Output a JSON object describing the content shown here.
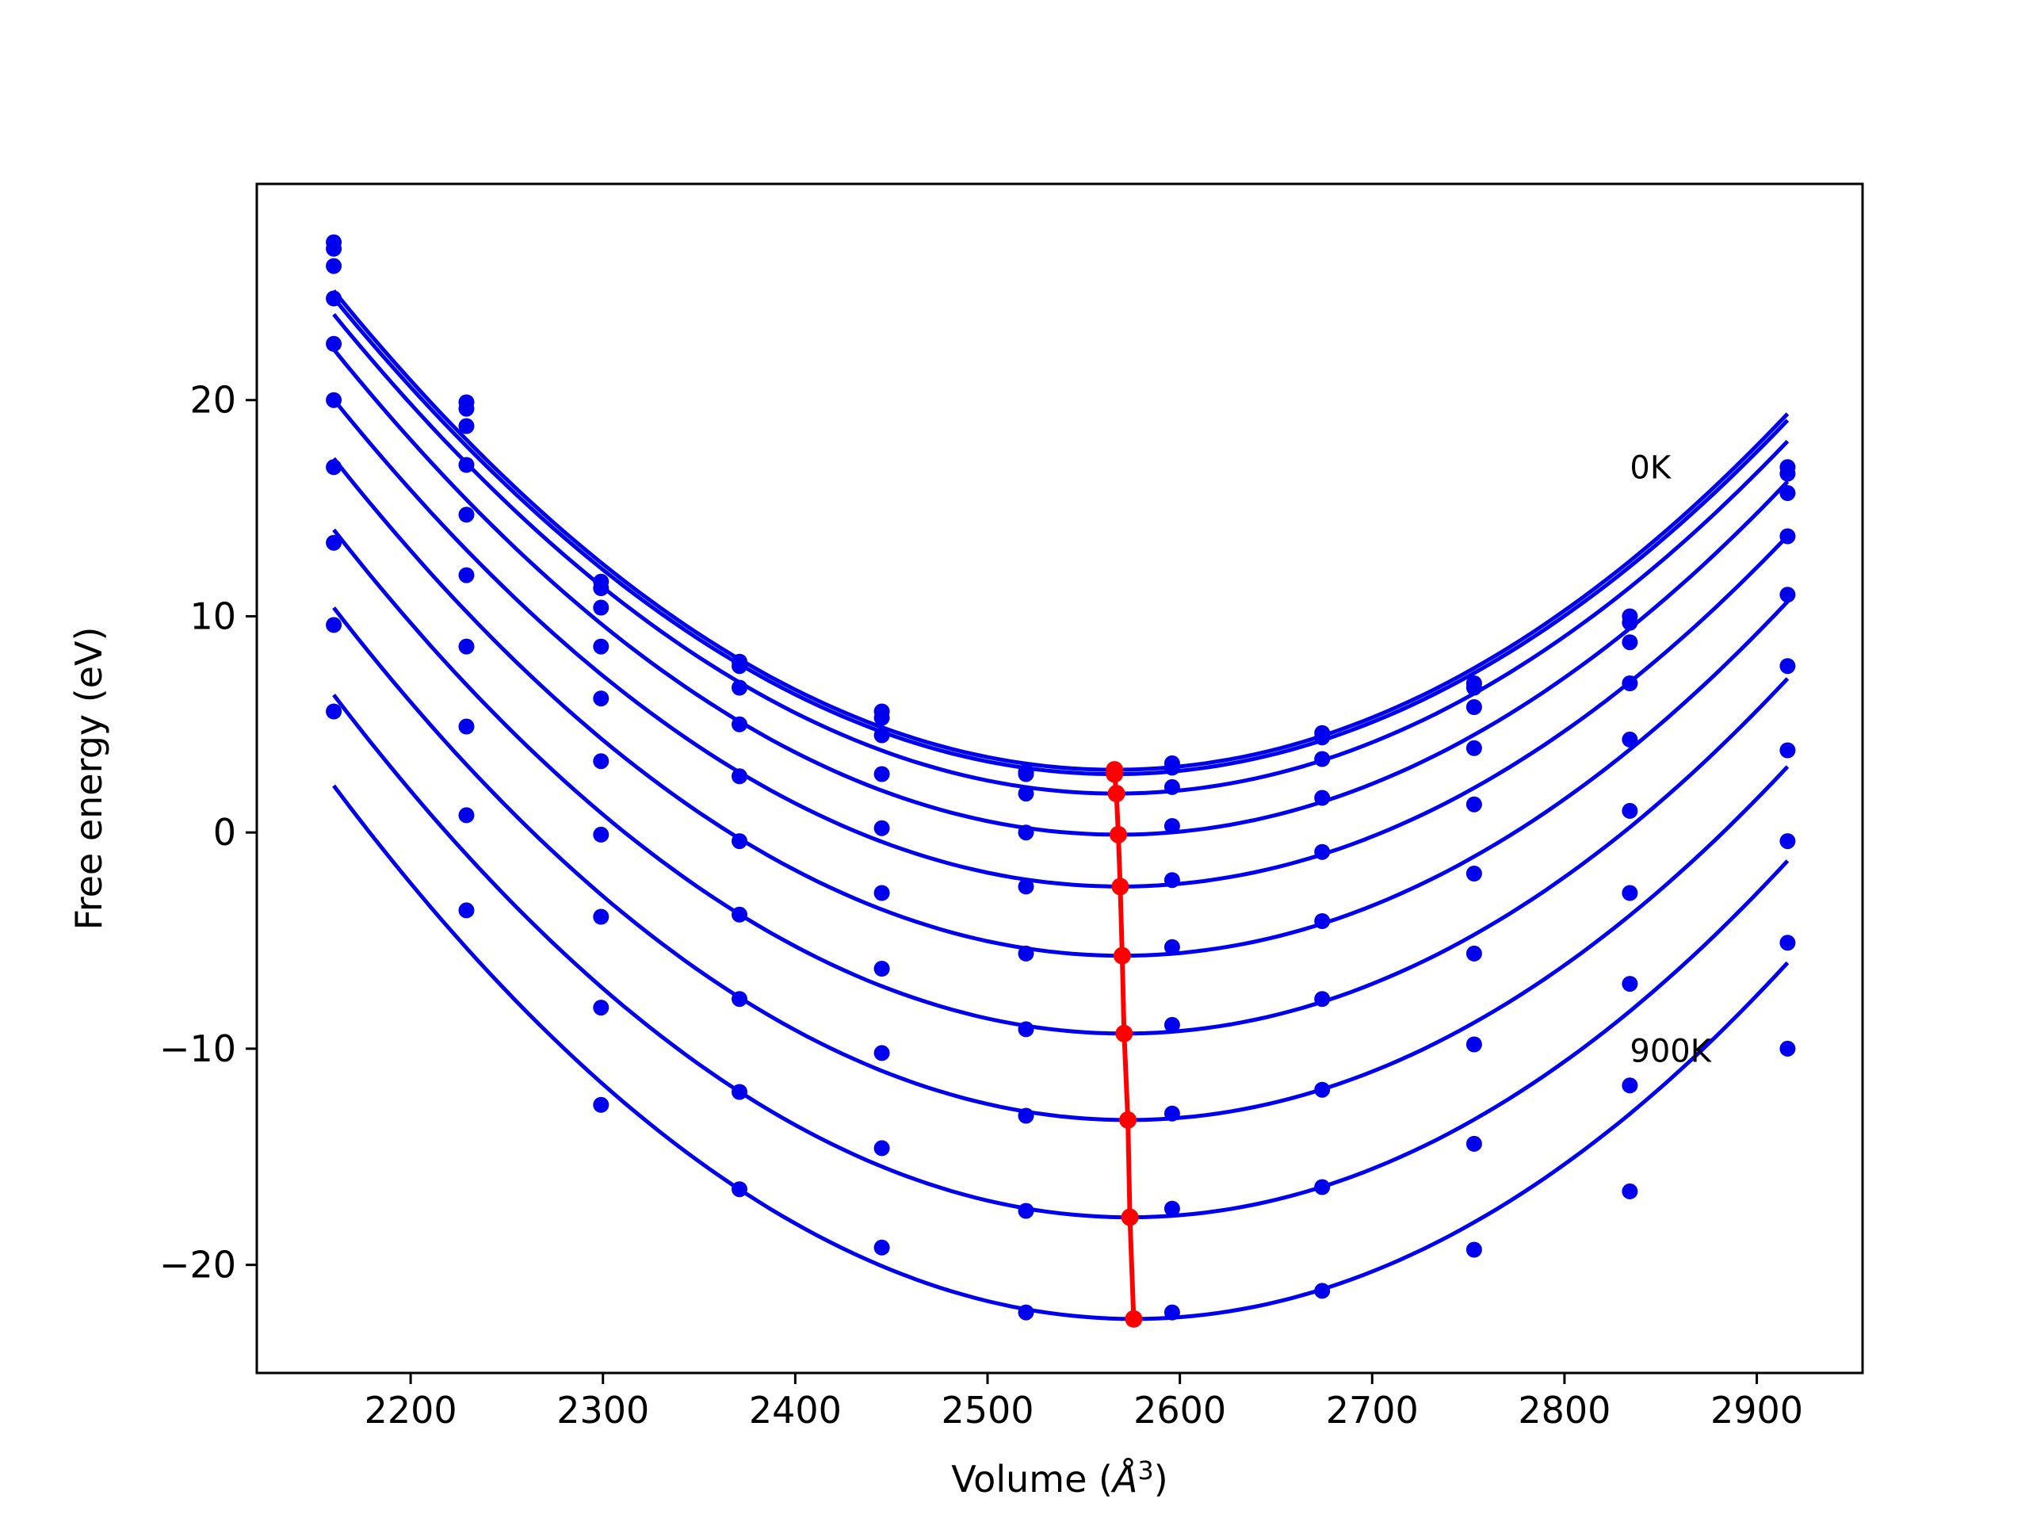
{
  "chart_data": {
    "type": "scatter",
    "title": "",
    "xlabel": "Volume (",
    "xlabel_unit": "Å",
    "xlabel_exponent": "3",
    "xlabel_close": ")",
    "ylabel": "Free energy (eV)",
    "xlim": [
      2120,
      2955
    ],
    "ylim": [
      -25,
      30
    ],
    "xticks": [
      2200,
      2300,
      2400,
      2500,
      2600,
      2700,
      2800,
      2900
    ],
    "yticks": [
      -20,
      -10,
      0,
      10,
      20
    ],
    "ytick_labels": [
      "−20",
      "−10",
      "0",
      "10",
      "20"
    ],
    "grid": false,
    "x": [
      2160,
      2229,
      2299,
      2371,
      2445,
      2520,
      2596,
      2674,
      2753,
      2834,
      2916
    ],
    "series": [
      {
        "values": [
          27.3,
          19.9,
          11.6,
          7.9,
          5.6,
          2.8,
          3.2,
          4.6,
          6.9,
          10.0,
          16.9
        ],
        "fit": {
          "v0": 2566,
          "e0": 2.9
        },
        "color": "#0000ee"
      },
      {
        "values": [
          27.0,
          19.6,
          11.3,
          7.7,
          5.3,
          2.7,
          3.0,
          4.4,
          6.7,
          9.7,
          16.6
        ],
        "fit": {
          "v0": 2566,
          "e0": 2.7
        },
        "color": "#0000ee"
      },
      {
        "values": [
          26.2,
          18.8,
          10.4,
          6.7,
          4.5,
          1.8,
          2.1,
          3.4,
          5.8,
          8.8,
          15.7
        ],
        "fit": {
          "v0": 2567,
          "e0": 1.8
        },
        "color": "#0000ee"
      },
      {
        "values": [
          24.7,
          17.0,
          8.6,
          5.0,
          2.7,
          0.0,
          0.3,
          1.6,
          3.9,
          6.9,
          13.7
        ],
        "fit": {
          "v0": 2568,
          "e0": -0.1
        },
        "color": "#0000ee"
      },
      {
        "values": [
          22.6,
          14.7,
          6.2,
          2.6,
          0.2,
          -2.5,
          -2.2,
          -0.9,
          1.3,
          4.3,
          11.0
        ],
        "fit": {
          "v0": 2569,
          "e0": -2.5
        },
        "color": "#0000ee"
      },
      {
        "values": [
          20.0,
          11.9,
          3.3,
          -0.4,
          -2.8,
          -5.6,
          -5.3,
          -4.1,
          -1.9,
          1.0,
          7.7
        ],
        "fit": {
          "v0": 2570,
          "e0": -5.7
        },
        "color": "#0000ee"
      },
      {
        "values": [
          16.9,
          8.6,
          -0.1,
          -3.8,
          -6.3,
          -9.1,
          -8.9,
          -7.7,
          -5.6,
          -2.8,
          3.8
        ],
        "fit": {
          "v0": 2571,
          "e0": -9.3
        },
        "color": "#0000ee"
      },
      {
        "values": [
          13.4,
          4.9,
          -3.9,
          -7.7,
          -10.2,
          -13.1,
          -13.0,
          -11.9,
          -9.8,
          -7.0,
          -0.4
        ],
        "fit": {
          "v0": 2573,
          "e0": -13.3
        },
        "color": "#0000ee"
      },
      {
        "values": [
          9.6,
          0.8,
          -8.1,
          -12.0,
          -14.6,
          -17.5,
          -17.4,
          -16.4,
          -14.4,
          -11.7,
          -5.1
        ],
        "fit": {
          "v0": 2574,
          "e0": -17.8
        },
        "color": "#0000ee"
      },
      {
        "values": [
          5.6,
          -3.6,
          -12.6,
          -16.5,
          -19.2,
          -22.2,
          -22.2,
          -21.2,
          -19.3,
          -16.6,
          -10.0
        ],
        "fit": {
          "v0": 2576,
          "e0": -22.5
        },
        "color": "#0000ee"
      }
    ],
    "fit_x_range": [
      2160,
      2916
    ],
    "minima_line": {
      "color": "#ff0000",
      "x": [
        2566,
        2566,
        2567,
        2568,
        2569,
        2570,
        2571,
        2573,
        2574,
        2576
      ],
      "y": [
        2.9,
        2.7,
        1.8,
        -0.1,
        -2.5,
        -5.7,
        -9.3,
        -13.3,
        -17.8,
        -22.5
      ]
    },
    "annotations": [
      {
        "text": "0K",
        "x": 2834,
        "y": 16.9
      },
      {
        "text": "900K",
        "x": 2834,
        "y": -10.1
      }
    ]
  }
}
